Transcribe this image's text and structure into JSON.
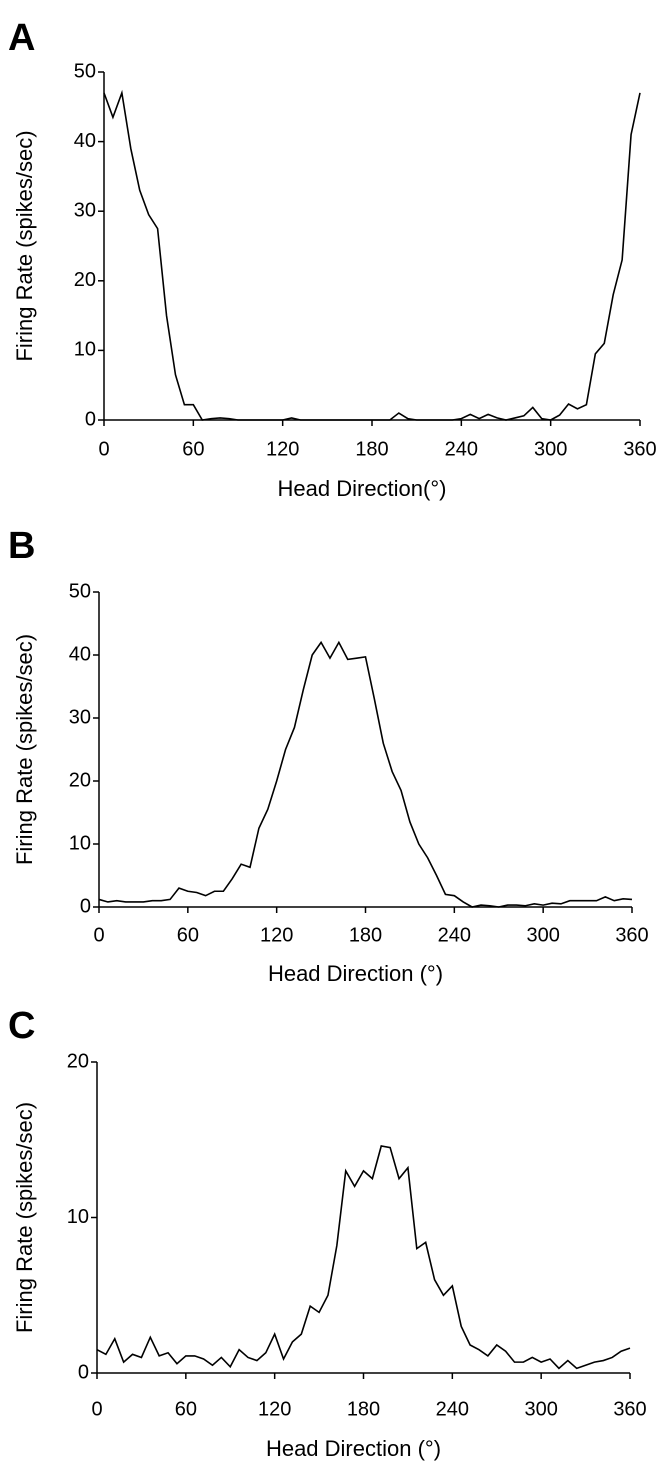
{
  "chart_data": [
    {
      "type": "line",
      "label": "A",
      "x_label": "Head Direction(°)",
      "y_label": "Firing Rate (spikes/sec)",
      "color": "#000000",
      "x": [
        0,
        6,
        12,
        18,
        24,
        30,
        36,
        42,
        48,
        54,
        60,
        66,
        72,
        78,
        84,
        90,
        96,
        102,
        108,
        114,
        120,
        126,
        132,
        138,
        144,
        150,
        156,
        162,
        168,
        174,
        180,
        186,
        192,
        198,
        204,
        210,
        216,
        222,
        228,
        234,
        240,
        246,
        252,
        258,
        264,
        270,
        276,
        282,
        288,
        294,
        300,
        306,
        312,
        318,
        324,
        330,
        336,
        342,
        348,
        354,
        360
      ],
      "values": [
        47,
        43.5,
        47,
        39,
        33,
        29.5,
        27.5,
        15,
        6.5,
        2.2,
        2.2,
        0,
        0.2,
        0.3,
        0.2,
        0,
        0,
        0,
        0,
        0,
        0,
        0.3,
        0,
        0,
        0,
        0,
        0,
        0,
        0,
        0,
        0,
        0,
        0,
        1,
        0.2,
        0,
        0,
        0,
        0,
        0,
        0.2,
        0.8,
        0.2,
        0.8,
        0.3,
        0,
        0.3,
        0.6,
        1.8,
        0.2,
        0,
        0.7,
        2.3,
        1.6,
        2.2,
        9.5,
        11,
        18,
        23,
        41,
        47
      ],
      "xlim": [
        0,
        360
      ],
      "xticks": [
        0,
        60,
        120,
        180,
        240,
        300,
        360
      ],
      "ylim": [
        0,
        50
      ],
      "yticks": [
        0,
        10,
        20,
        30,
        40,
        50
      ]
    },
    {
      "type": "line",
      "label": "B",
      "x_label": "Head Direction (°)",
      "y_label": "Firing Rate (spikes/sec)",
      "color": "#000000",
      "x": [
        0,
        6,
        12,
        18,
        24,
        30,
        36,
        42,
        48,
        54,
        60,
        66,
        72,
        78,
        84,
        90,
        96,
        102,
        108,
        114,
        120,
        126,
        132,
        138,
        144,
        150,
        156,
        162,
        168,
        174,
        180,
        186,
        192,
        198,
        204,
        210,
        216,
        222,
        228,
        234,
        240,
        246,
        252,
        258,
        264,
        270,
        276,
        282,
        288,
        294,
        300,
        306,
        312,
        318,
        324,
        330,
        336,
        342,
        348,
        354,
        360
      ],
      "values": [
        1.2,
        0.8,
        1,
        0.8,
        0.8,
        0.8,
        1,
        1,
        1.2,
        3,
        2.5,
        2.3,
        1.8,
        2.5,
        2.5,
        4.5,
        6.8,
        6.3,
        12.5,
        15.5,
        20,
        25,
        28.5,
        34.5,
        40,
        42,
        39.5,
        42,
        39.3,
        39.5,
        39.7,
        33,
        26,
        21.5,
        18.5,
        13.5,
        10,
        7.8,
        5,
        2,
        1.8,
        0.8,
        0,
        0.3,
        0.2,
        0,
        0.3,
        0.3,
        0.2,
        0.5,
        0.3,
        0.6,
        0.5,
        1,
        1,
        1,
        1,
        1.6,
        1,
        1.3,
        1.2
      ],
      "xlim": [
        0,
        360
      ],
      "xticks": [
        0,
        60,
        120,
        180,
        240,
        300,
        360
      ],
      "ylim": [
        0,
        50
      ],
      "yticks": [
        0,
        10,
        20,
        30,
        40,
        50
      ]
    },
    {
      "type": "line",
      "label": "C",
      "x_label": "Head Direction (°)",
      "y_label": "Firing Rate (spikes/sec)",
      "color": "#000000",
      "x": [
        0,
        6,
        12,
        18,
        24,
        30,
        36,
        42,
        48,
        54,
        60,
        66,
        72,
        78,
        84,
        90,
        96,
        102,
        108,
        114,
        120,
        126,
        132,
        138,
        144,
        150,
        156,
        162,
        168,
        174,
        180,
        186,
        192,
        198,
        204,
        210,
        216,
        222,
        228,
        234,
        240,
        246,
        252,
        258,
        264,
        270,
        276,
        282,
        288,
        294,
        300,
        306,
        312,
        318,
        324,
        330,
        336,
        342,
        348,
        354,
        360
      ],
      "values": [
        1.5,
        1.2,
        2.2,
        0.7,
        1.2,
        1,
        2.3,
        1.1,
        1.3,
        0.6,
        1.1,
        1.1,
        0.9,
        0.5,
        1,
        0.4,
        1.5,
        1,
        0.8,
        1.3,
        2.5,
        0.9,
        2,
        2.5,
        4.3,
        3.9,
        5,
        8.2,
        13,
        12,
        13,
        12.5,
        14.6,
        14.5,
        12.5,
        13.2,
        8,
        8.4,
        6,
        5,
        5.6,
        3,
        1.8,
        1.5,
        1.1,
        1.8,
        1.4,
        0.7,
        0.7,
        1,
        0.7,
        0.9,
        0.3,
        0.8,
        0.3,
        0.5,
        0.7,
        0.8,
        1,
        1.4,
        1.6
      ],
      "xlim": [
        0,
        360
      ],
      "xticks": [
        0,
        60,
        120,
        180,
        240,
        300,
        360
      ],
      "ylim": [
        0,
        20
      ],
      "yticks": [
        0,
        10,
        20
      ]
    }
  ]
}
